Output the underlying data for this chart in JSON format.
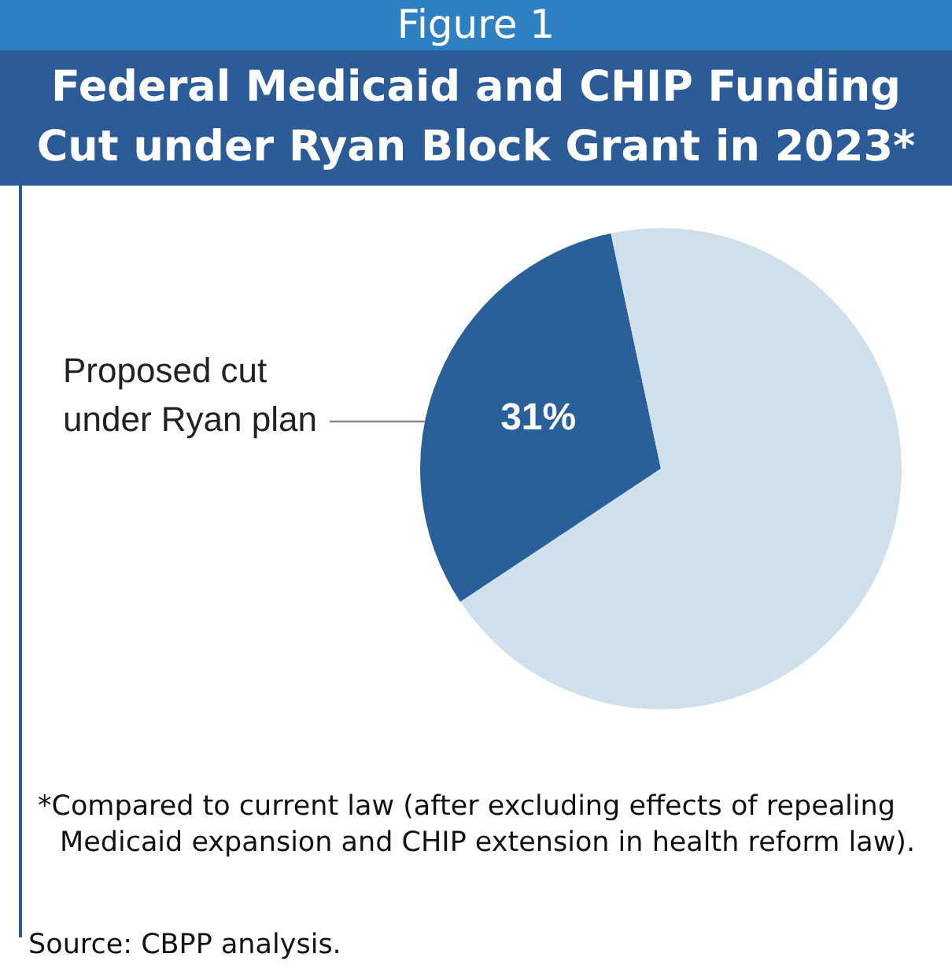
{
  "chart_data": {
    "type": "pie",
    "subtitle": "Figure 1",
    "title": "Federal Medicaid and CHIP Funding Cut under Ryan Block Grant in 2023*",
    "categories": [
      "Proposed cut under Ryan plan",
      null
    ],
    "values": [
      31,
      69
    ],
    "colors": [
      "#2a6099",
      "#cfe0ec"
    ],
    "value_labels": [
      "31%",
      null
    ],
    "legend": false,
    "annotations": [
      "*Compared to current law (after excluding effects of repealing Medicaid expansion and CHIP extension in health reform law).",
      "Source:  CBPP analysis."
    ]
  }
}
